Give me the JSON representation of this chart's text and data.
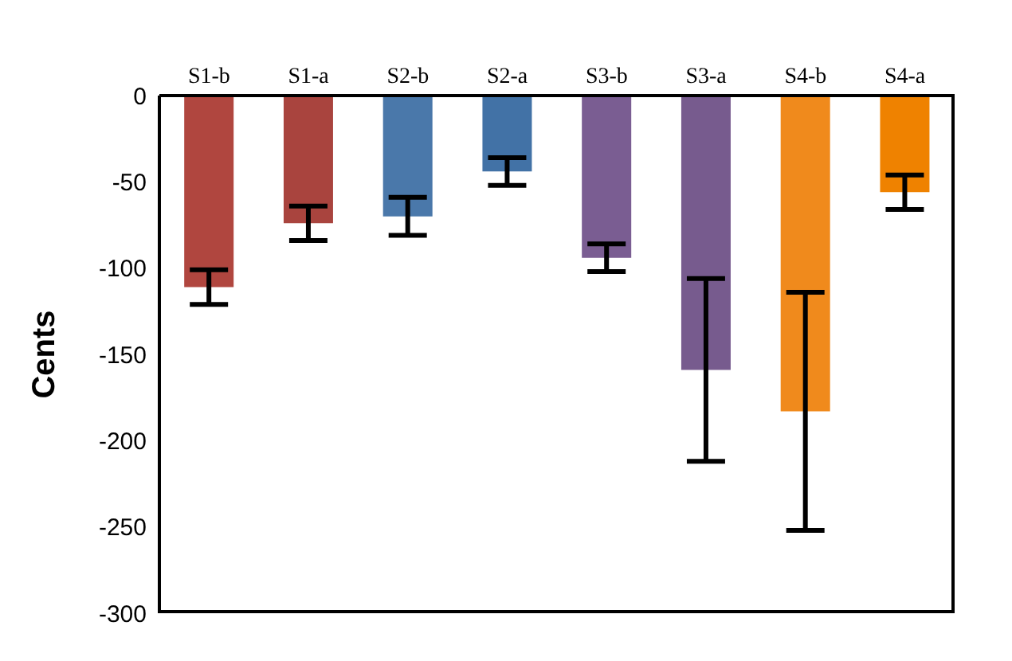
{
  "chart_data": {
    "type": "bar",
    "ylabel": "Cents",
    "categories": [
      "S1-b",
      "S1-a",
      "S2-b",
      "S2-a",
      "S3-b",
      "S3-a",
      "S4-b",
      "S4-a"
    ],
    "values": [
      -111,
      -74,
      -70,
      -44,
      -94,
      -159,
      -183,
      -56
    ],
    "errors": [
      10,
      10,
      11,
      8,
      8,
      53,
      69,
      10
    ],
    "colors": [
      "#b0463f",
      "#a9443e",
      "#4a78aa",
      "#4272a6",
      "#7a5d92",
      "#775b8e",
      "#f08a1c",
      "#ef8200"
    ],
    "ylim": [
      -300,
      0
    ],
    "yticks": [
      -300,
      -250,
      -200,
      -150,
      -100,
      -50,
      0
    ],
    "grid": false
  }
}
